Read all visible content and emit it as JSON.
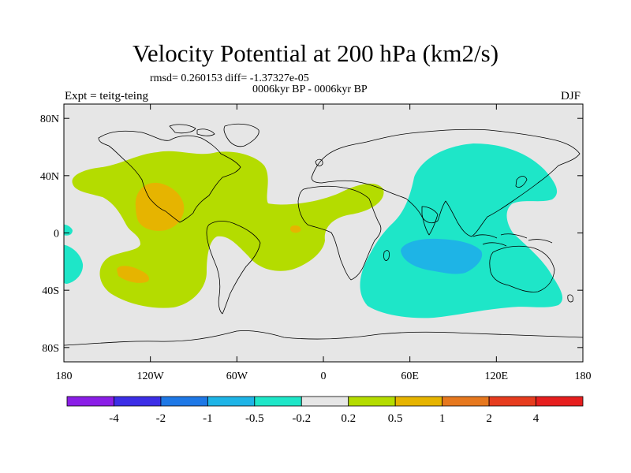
{
  "header": {
    "title": "Velocity Potential at 200 hPa (km2/s)",
    "stats": "rmsd= 0.260153 diff= -1.37327e-05",
    "subtitle": "0006kyr BP - 0006kyr BP",
    "experiment": "Expt = teitg-teing",
    "season": "DJF"
  },
  "map": {
    "projection": "cylindrical equidistant",
    "lon_range": [
      -180,
      180
    ],
    "lat_range": [
      -90,
      90
    ],
    "background_color": "#e6e6e6",
    "lat_tick_labels": [
      "80N",
      "40N",
      "0",
      "40S",
      "80S"
    ],
    "lat_tick_values": [
      80,
      40,
      0,
      -40,
      -80
    ],
    "lon_tick_labels": [
      "180",
      "120W",
      "60W",
      "0",
      "60E",
      "120E",
      "180"
    ],
    "lon_tick_values": [
      -180,
      -120,
      -60,
      0,
      60,
      120,
      180
    ]
  },
  "colorbar": {
    "colors": [
      "#8a1ee6",
      "#3c2ee6",
      "#1e78e6",
      "#1eb4e6",
      "#1ee6c8",
      "#e6e6e6",
      "#b4dc00",
      "#e6b400",
      "#e6781e",
      "#e63c1e",
      "#e61e1e"
    ],
    "labels": [
      "-4",
      "-2",
      "-1",
      "-0.5",
      "-0.2",
      "0.2",
      "0.5",
      "1",
      "2",
      "4"
    ]
  },
  "chart_data": {
    "type": "filled-contour map",
    "title": "Velocity Potential at 200 hPa (km2/s)",
    "field": "velocity potential difference at 200 hPa",
    "units": "km2/s",
    "contour_levels": [
      -4,
      -2,
      -1,
      -0.5,
      -0.2,
      0.2,
      0.5,
      1,
      2,
      4
    ],
    "regions": [
      {
        "name": "Americas-Atlantic positive anomaly",
        "level": "0.2 to 0.5",
        "color": "#b4dc00"
      },
      {
        "name": "Mexico maximum",
        "level": "0.5 to 1",
        "color": "#e6b400"
      },
      {
        "name": "South Pacific maximum",
        "level": "0.5 to 1",
        "color": "#e6b400"
      },
      {
        "name": "Gulf of Guinea maximum",
        "level": "0.5 to 1",
        "color": "#e6b400"
      },
      {
        "name": "Indo-Pacific negative anomaly",
        "level": "-0.5 to -0.2",
        "color": "#1ee6c8"
      },
      {
        "name": "Indian Ocean minimum",
        "level": "-1 to -0.5",
        "color": "#1eb4e6"
      },
      {
        "name": "Western edge negative anomaly",
        "level": "-0.5 to -0.2",
        "color": "#1ee6c8"
      }
    ]
  }
}
